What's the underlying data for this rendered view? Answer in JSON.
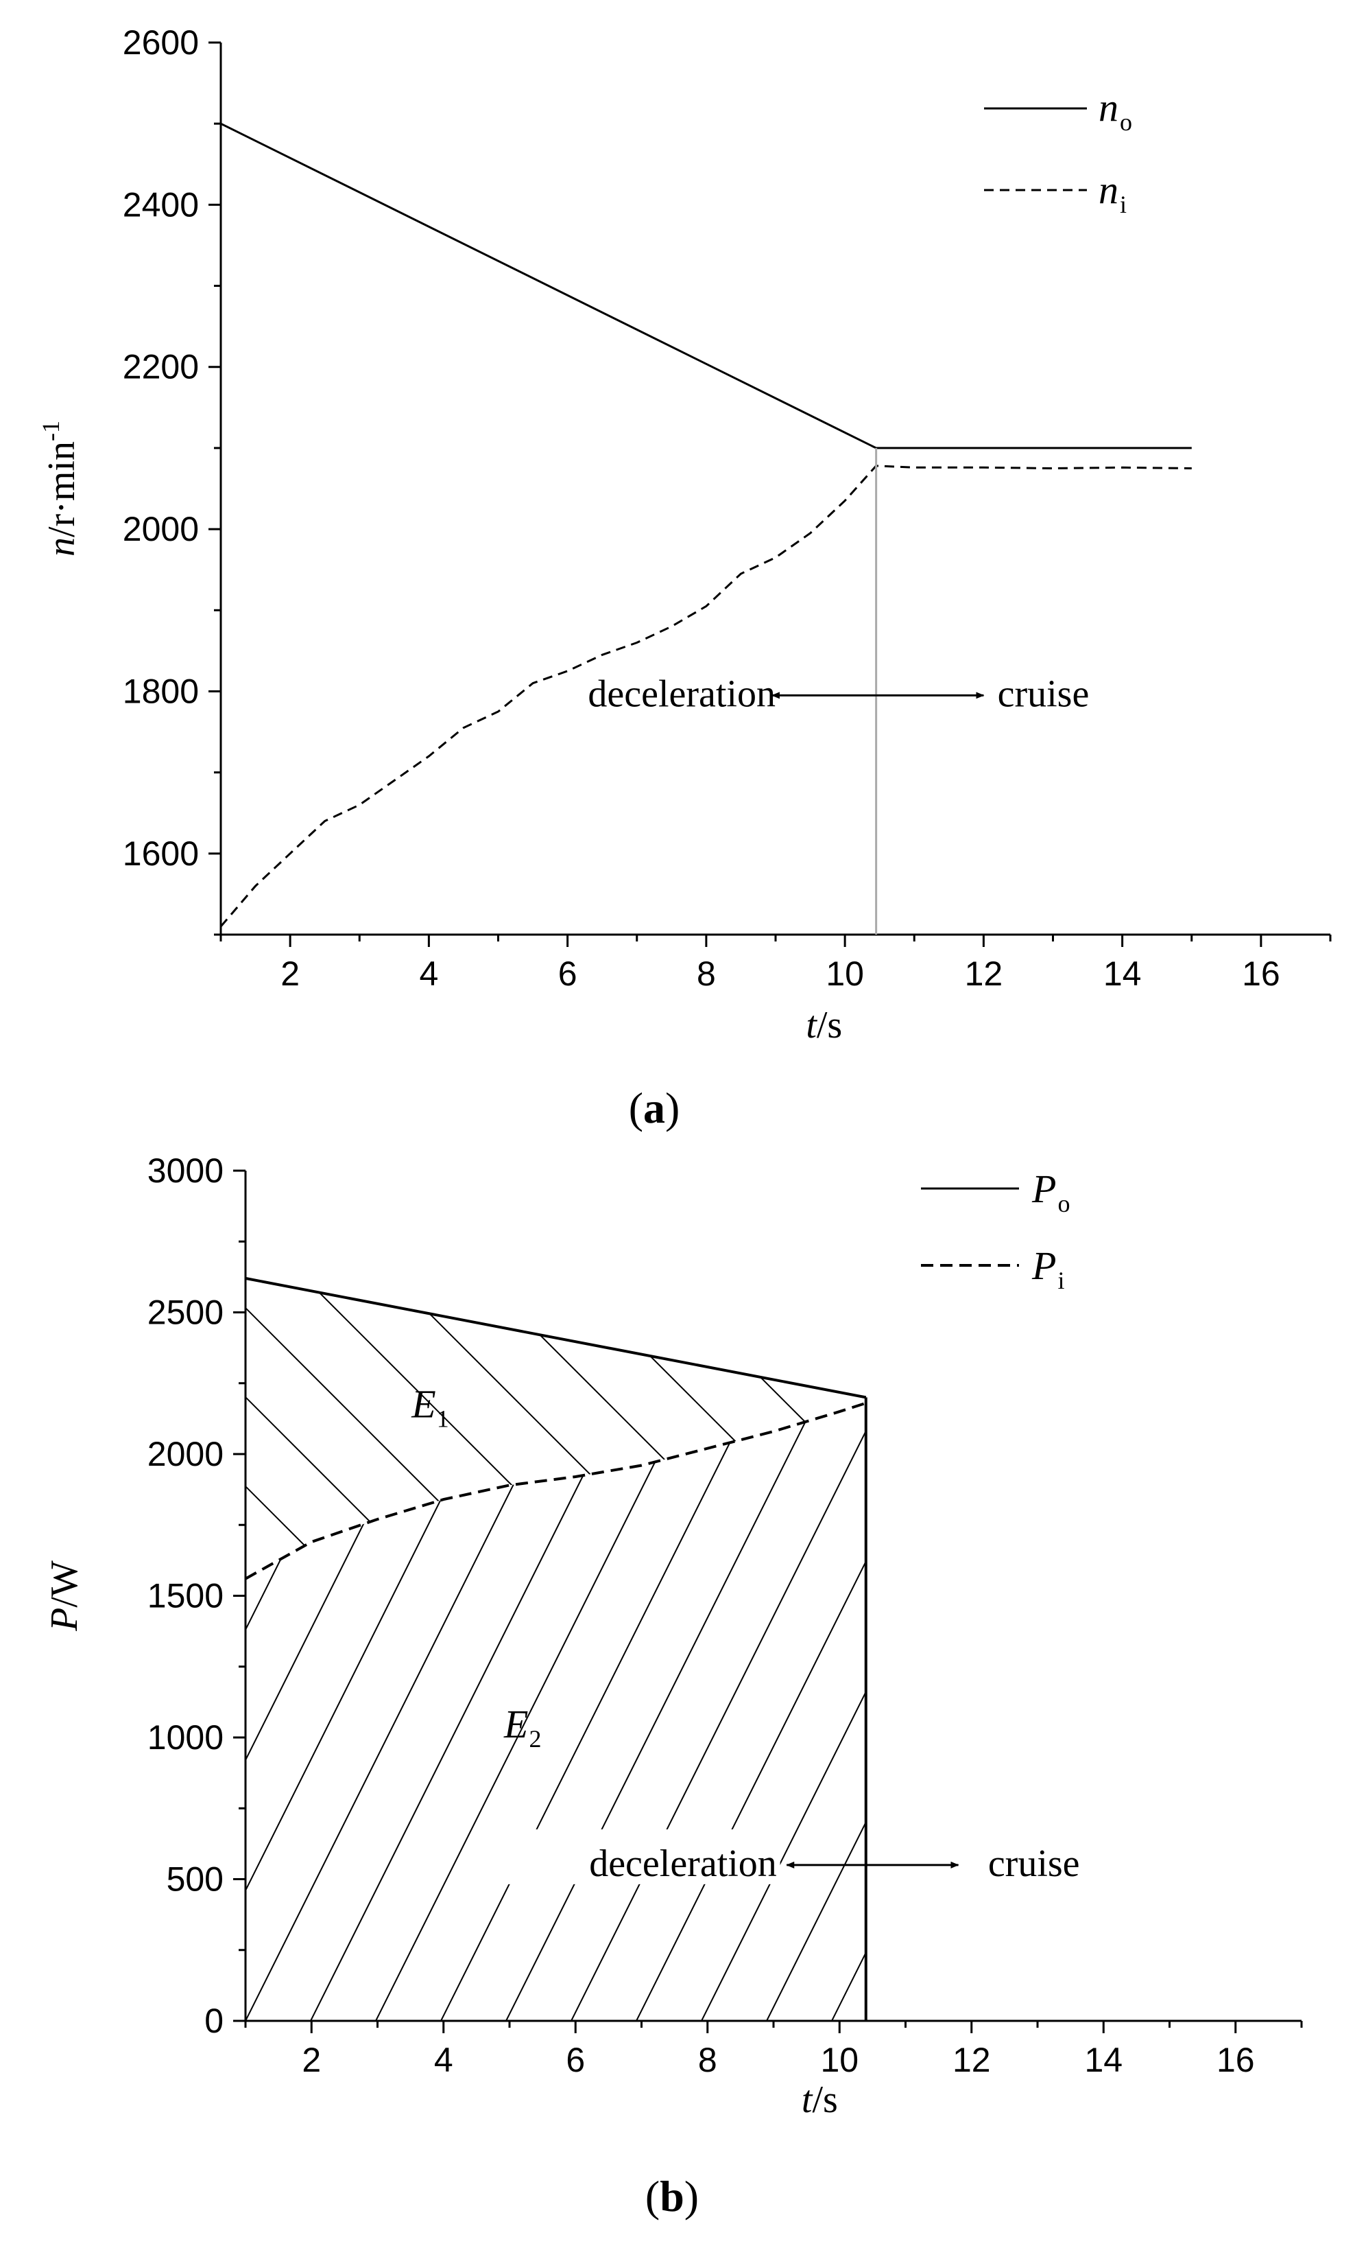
{
  "chart_data": [
    {
      "type": "line",
      "caption_open": "(",
      "caption_letter": "a",
      "caption_close": ")",
      "xlabel_var": "t",
      "xlabel_unit": "/s",
      "ylabel_var": "n",
      "ylabel_unit": "/r·min",
      "ylabel_sup": "-1",
      "xlim": [
        1,
        17
      ],
      "ylim": [
        1500,
        2600
      ],
      "xticks": [
        2,
        4,
        6,
        8,
        10,
        12,
        14,
        16
      ],
      "yticks": [
        1600,
        1800,
        2000,
        2200,
        2400,
        2600
      ],
      "grid": false,
      "legend_position": "top-right",
      "series": [
        {
          "name": "n",
          "name_sub": "o",
          "style": "solid",
          "x": [
            1,
            10.45,
            15
          ],
          "y": [
            2500,
            2100,
            2100
          ]
        },
        {
          "name": "n",
          "name_sub": "i",
          "style": "dashed",
          "x": [
            1,
            1.5,
            2,
            2.5,
            3,
            3.5,
            4,
            4.5,
            5,
            5.5,
            6,
            6.5,
            7,
            7.5,
            8,
            8.5,
            9,
            9.5,
            10,
            10.45,
            11,
            12,
            13,
            14,
            15
          ],
          "y": [
            1510,
            1560,
            1600,
            1640,
            1660,
            1690,
            1720,
            1755,
            1775,
            1810,
            1825,
            1845,
            1860,
            1880,
            1905,
            1945,
            1965,
            1995,
            2035,
            2078,
            2076,
            2076,
            2075,
            2076,
            2075
          ]
        }
      ],
      "divider_x": 10.45,
      "annotations": {
        "left": "deceleration",
        "right": "cruise",
        "y": 1795
      }
    },
    {
      "type": "line",
      "caption_open": "(",
      "caption_letter": "b",
      "caption_close": ")",
      "xlabel_var": "t",
      "xlabel_unit": "/s",
      "ylabel_var": "P",
      "ylabel_unit": "/W",
      "xlim": [
        1,
        17
      ],
      "ylim": [
        0,
        3000
      ],
      "xticks": [
        2,
        4,
        6,
        8,
        10,
        12,
        14,
        16
      ],
      "yticks": [
        0,
        500,
        1000,
        1500,
        2000,
        2500,
        3000
      ],
      "grid": false,
      "legend_position": "top-right",
      "series": [
        {
          "name": "P",
          "name_sub": "o",
          "style": "solid",
          "x": [
            1,
            10.4
          ],
          "y": [
            2620,
            2200
          ]
        },
        {
          "name": "P",
          "name_sub": "i",
          "style": "dashed",
          "x": [
            1,
            2,
            3,
            4,
            5,
            6,
            7,
            8,
            9,
            10,
            10.4
          ],
          "y": [
            1560,
            1690,
            1770,
            1840,
            1890,
            1920,
            1960,
            2020,
            2080,
            2150,
            2180
          ]
        }
      ],
      "divider_x": 10.4,
      "regions": [
        {
          "label": "E",
          "label_sub": "1",
          "x": 3.8,
          "y": 2130
        },
        {
          "label": "E",
          "label_sub": "2",
          "x": 5.2,
          "y": 1000
        }
      ],
      "annotations": {
        "left": "deceleration",
        "right": "cruise",
        "y": 550
      }
    }
  ]
}
